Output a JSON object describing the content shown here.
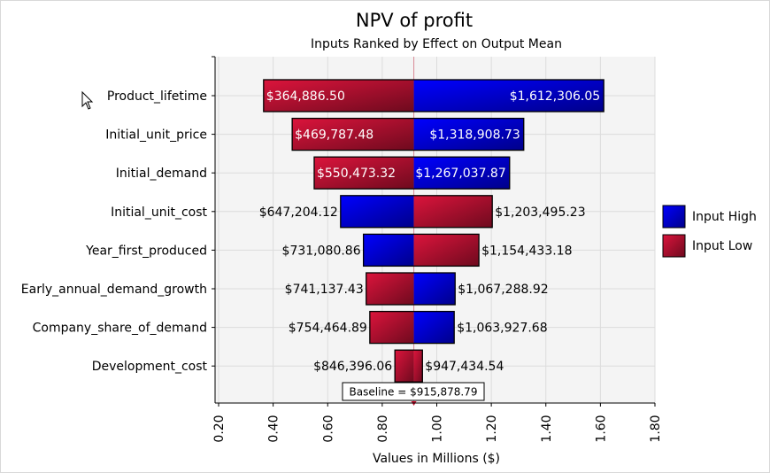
{
  "chart_data": {
    "type": "bar",
    "subtype": "tornado",
    "title": "NPV of profit",
    "subtitle": "Inputs Ranked by Effect on Output Mean",
    "xlabel": "Values in Millions ($)",
    "xlim": [
      0.2,
      1.8
    ],
    "xticks": [
      "0.20",
      "0.40",
      "0.60",
      "0.80",
      "1.00",
      "1.20",
      "1.40",
      "1.60",
      "1.80"
    ],
    "grid": true,
    "baseline": 0.91587879,
    "baseline_label": "Baseline = $915,878.79",
    "legend": {
      "position": "right",
      "entries": [
        {
          "name": "Input High",
          "color": "#0000e0"
        },
        {
          "name": "Input Low",
          "color": "#c8102e"
        }
      ]
    },
    "rows": [
      {
        "name": "Product_lifetime",
        "left": 0.3648865,
        "left_label": "$364,886.50",
        "left_series": "low",
        "right": 1.61230605,
        "right_label": "$1,612,306.05",
        "right_series": "high",
        "labels_inside": true
      },
      {
        "name": "Initial_unit_price",
        "left": 0.46978748,
        "left_label": "$469,787.48",
        "left_series": "low",
        "right": 1.31890873,
        "right_label": "$1,318,908.73",
        "right_series": "high",
        "labels_inside": true
      },
      {
        "name": "Initial_demand",
        "left": 0.55047332,
        "left_label": "$550,473.32",
        "left_series": "low",
        "right": 1.26703787,
        "right_label": "$1,267,037.87",
        "right_series": "high",
        "labels_inside": true
      },
      {
        "name": "Initial_unit_cost",
        "left": 0.64720412,
        "left_label": "$647,204.12",
        "left_series": "high",
        "right": 1.20349523,
        "right_label": "$1,203,495.23",
        "right_series": "low",
        "labels_inside": false
      },
      {
        "name": "Year_first_produced",
        "left": 0.73108086,
        "left_label": "$731,080.86",
        "left_series": "high",
        "right": 1.15443318,
        "right_label": "$1,154,433.18",
        "right_series": "low",
        "labels_inside": false
      },
      {
        "name": "Early_annual_demand_growth",
        "left": 0.74113743,
        "left_label": "$741,137.43",
        "left_series": "low",
        "right": 1.06728892,
        "right_label": "$1,067,288.92",
        "right_series": "high",
        "labels_inside": false
      },
      {
        "name": "Company_share_of_demand",
        "left": 0.75446489,
        "left_label": "$754,464.89",
        "left_series": "low",
        "right": 1.06392768,
        "right_label": "$1,063,927.68",
        "right_series": "high",
        "labels_inside": false
      },
      {
        "name": "Development_cost",
        "left": 0.84639606,
        "left_label": "$846,396.06",
        "left_series": "low",
        "right": 0.94743454,
        "right_label": "$947,434.54",
        "right_series": "low",
        "labels_inside": false
      }
    ]
  }
}
